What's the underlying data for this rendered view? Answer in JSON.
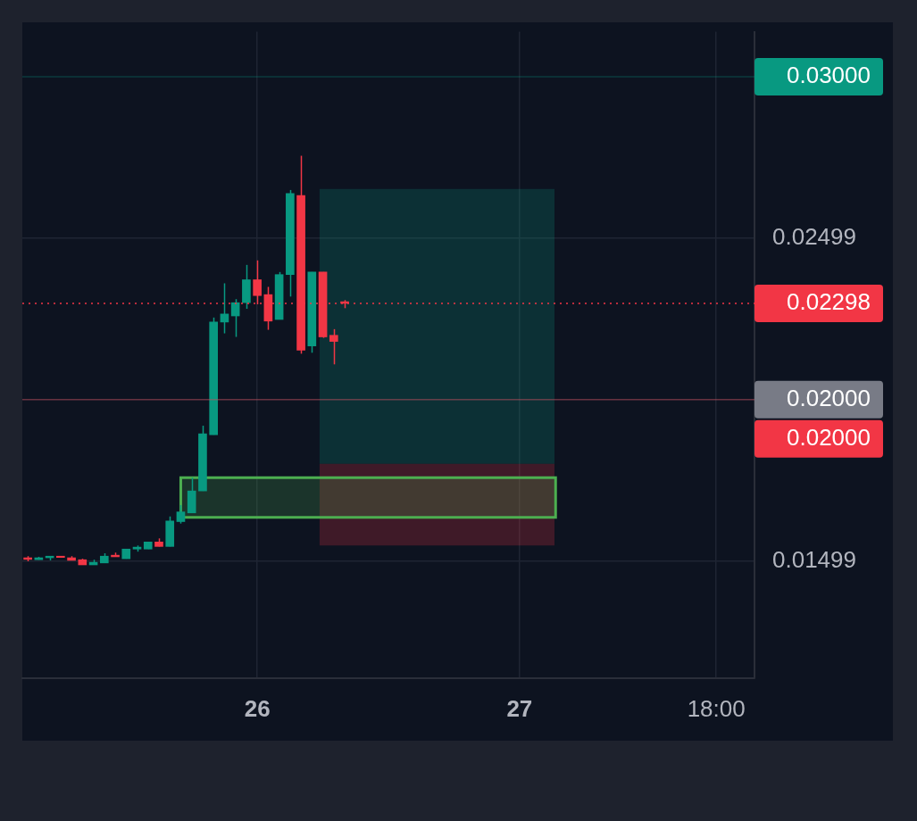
{
  "chart_data": {
    "type": "candlestick",
    "categories": [
      null,
      null,
      null,
      null,
      null,
      null,
      null,
      null,
      null,
      null,
      null,
      null,
      null,
      null,
      null,
      null,
      null,
      null,
      null,
      null,
      null,
      "26",
      null,
      null,
      null,
      null,
      null,
      null,
      null,
      null,
      null,
      null,
      null,
      null,
      null,
      null,
      null,
      null,
      null,
      null,
      null,
      null,
      null,
      null,
      null,
      "27",
      null,
      null,
      null,
      null,
      null,
      null,
      null,
      null,
      null,
      null,
      null,
      null,
      null,
      null,
      null,
      null,
      null,
      "18:00",
      null,
      null,
      null
    ],
    "ohlc": [
      [
        0.0151,
        0.01515,
        0.01499,
        0.01505
      ],
      [
        0.01504,
        0.01513,
        0.01504,
        0.0151
      ],
      [
        0.0151,
        0.01515,
        0.01502,
        0.01515
      ],
      [
        0.01515,
        0.01515,
        0.0151,
        0.01511
      ],
      [
        0.0151,
        0.01515,
        0.01502,
        0.01502
      ],
      [
        0.01504,
        0.01507,
        0.01488,
        0.01488
      ],
      [
        0.01488,
        0.01504,
        0.01488,
        0.01496
      ],
      [
        0.01494,
        0.01524,
        0.01494,
        0.01515
      ],
      [
        0.01518,
        0.01526,
        0.01513,
        0.01513
      ],
      [
        0.01507,
        0.01537,
        0.01507,
        0.01537
      ],
      [
        0.01537,
        0.01548,
        0.01529,
        0.01543
      ],
      [
        0.01537,
        0.01559,
        0.01537,
        0.01559
      ],
      [
        0.01559,
        0.0157,
        0.01545,
        0.01545
      ],
      [
        0.01545,
        0.01638,
        0.01545,
        0.01624
      ],
      [
        0.01622,
        0.01673,
        0.01616,
        0.01652
      ],
      [
        0.01649,
        0.01758,
        0.01649,
        0.01717
      ],
      [
        0.01717,
        0.01919,
        0.01717,
        0.01894
      ],
      [
        0.01891,
        0.02254,
        0.01891,
        0.0224
      ],
      [
        0.0224,
        0.0236,
        0.02205,
        0.02265
      ],
      [
        0.02259,
        0.02311,
        0.02194,
        0.023
      ],
      [
        0.023,
        0.02417,
        0.02281,
        0.02371
      ],
      [
        0.02371,
        0.02431,
        0.02295,
        0.02322
      ],
      [
        0.02325,
        0.02349,
        0.02216,
        0.02243
      ],
      [
        0.02248,
        0.02395,
        0.02248,
        0.02387
      ],
      [
        0.02387,
        0.02649,
        0.02319,
        0.02638
      ],
      [
        0.02632,
        0.02755,
        0.02142,
        0.02153
      ],
      [
        0.02166,
        0.02395,
        0.02145,
        0.02395
      ],
      [
        0.02395,
        0.02395,
        0.02191,
        0.02194
      ],
      [
        0.02199,
        0.02218,
        0.02109,
        0.0218
      ],
      [
        0.02303,
        0.02308,
        0.02283,
        0.02298
      ],
      null,
      null,
      null,
      null,
      null,
      null,
      null,
      null,
      null,
      null,
      null,
      null,
      null,
      null,
      null,
      null,
      null,
      null,
      null,
      null,
      null,
      null,
      null,
      null,
      null,
      null,
      null,
      null,
      null,
      null,
      null,
      null,
      null,
      null,
      null,
      null,
      null
    ],
    "colors": [
      "#f23645",
      "#089981",
      "#089981",
      "#f23645",
      "#f23645",
      "#f23645",
      "#089981",
      "#089981",
      "#f23645",
      "#089981",
      "#089981",
      "#089981",
      "#f23645",
      "#089981",
      "#089981",
      "#089981",
      "#089981",
      "#089981",
      "#089981",
      "#089981",
      "#089981",
      "#f23645",
      "#f23645",
      "#089981",
      "#089981",
      "#f23645",
      "#089981",
      "#f23645",
      "#f23645",
      "#f23645",
      null,
      null,
      null,
      null,
      null,
      null,
      null,
      null,
      null,
      null,
      null,
      null,
      null,
      null,
      null,
      null,
      null,
      null,
      null,
      null,
      null,
      null,
      null,
      null,
      null,
      null,
      null,
      null,
      null,
      null,
      null,
      null,
      null,
      null,
      null,
      null,
      null
    ],
    "ylim": [
      0.01137,
      0.03139
    ],
    "yticks": [
      0.01499,
      0.02499
    ],
    "ref_lines": [
      {
        "axis": "y",
        "value": 0.03,
        "label": "0.03000",
        "color": "#089981"
      },
      {
        "axis": "y",
        "value": 0.02298,
        "label": "0.02298",
        "color": "#f23645",
        "line_style": "dotted"
      },
      {
        "axis": "y",
        "value": 0.02,
        "label": "0.02000",
        "color": "#787b86"
      },
      {
        "axis": "y",
        "value": 0.02,
        "label": "0.02000",
        "color": "#f23645"
      }
    ],
    "bands": [
      {
        "axis": "y",
        "from": 0.01801,
        "to": 0.02652,
        "color": "#089981"
      },
      {
        "axis": "y",
        "from": 0.01548,
        "to": 0.01801,
        "color": "#f23645"
      },
      {
        "axis": "y",
        "from": 0.01635,
        "to": 0.01758,
        "color": "#4caf50"
      }
    ],
    "grid": true,
    "legend": false
  }
}
